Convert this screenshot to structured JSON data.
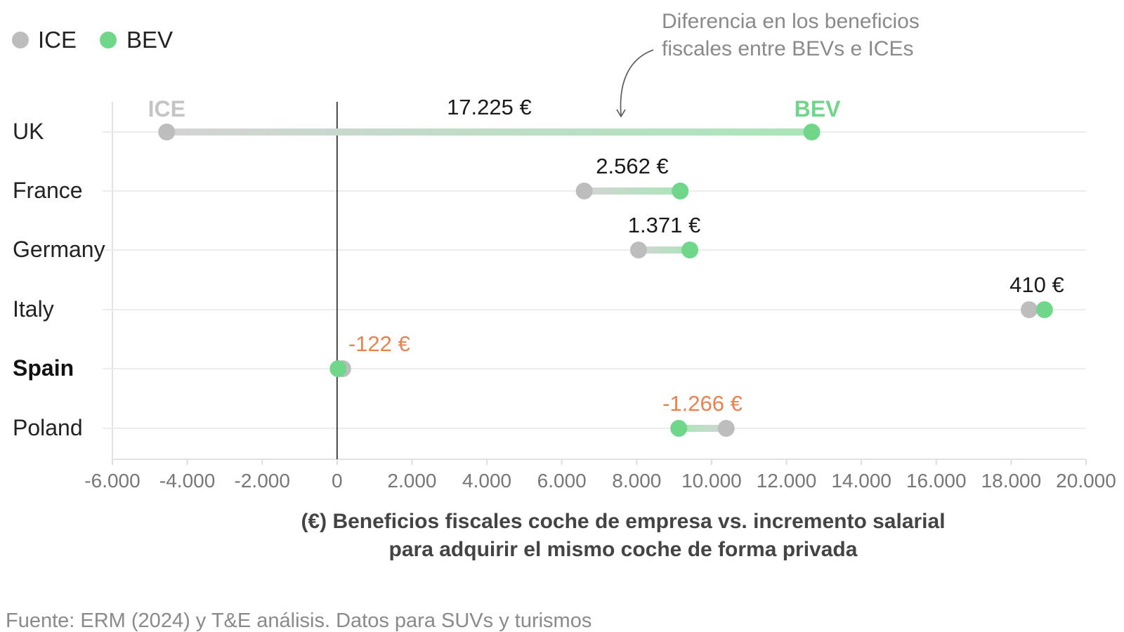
{
  "legend": [
    {
      "label": "ICE",
      "color": "#bdbdbd"
    },
    {
      "label": "BEV",
      "color": "#6fd68a"
    }
  ],
  "annotation": {
    "line1": "Diferencia en los beneficios",
    "line2": "fiscales entre BEVs e ICEs"
  },
  "end_labels": {
    "ice": "ICE",
    "bev": "BEV"
  },
  "source": "Fuente: ERM (2024) y T&E análisis. Datos para SUVs y turismos",
  "chart_data": {
    "type": "dumbbell",
    "xlabel_line1": "(€) Beneficios fiscales coche de empresa vs. incremento salarial",
    "xlabel_line2": "para adquirir el mismo coche de forma privada",
    "xlim": [
      -6000,
      20000
    ],
    "xticks": [
      -6000,
      -4000,
      -2000,
      0,
      2000,
      4000,
      6000,
      8000,
      10000,
      12000,
      14000,
      16000,
      18000,
      20000
    ],
    "xtick_labels": [
      "-6.000",
      "-4.000",
      "-2.000",
      "0",
      "2.000",
      "4.000",
      "6.000",
      "8.000",
      "10.000",
      "12.000",
      "14.000",
      "16.000",
      "18.000",
      "20.000"
    ],
    "colors": {
      "ice": "#bdbdbd",
      "bev": "#6fd68a",
      "negative": "#e8834f",
      "zero_line": "#111111",
      "grid": "#ececec"
    },
    "categories": [
      "UK",
      "France",
      "Germany",
      "Italy",
      "Spain",
      "Poland"
    ],
    "rows": [
      {
        "country": "UK",
        "ice": -4550,
        "bev": 12675,
        "diff_label": "17.225 €",
        "negative": false,
        "bold": false
      },
      {
        "country": "France",
        "ice": 6600,
        "bev": 9162,
        "diff_label": "2.562 €",
        "negative": false,
        "bold": false
      },
      {
        "country": "Germany",
        "ice": 8050,
        "bev": 9421,
        "diff_label": "1.371 €",
        "negative": false,
        "bold": false
      },
      {
        "country": "Italy",
        "ice": 18480,
        "bev": 18890,
        "diff_label": "410 €",
        "negative": false,
        "bold": false
      },
      {
        "country": "Spain",
        "ice": 150,
        "bev": 28,
        "diff_label": "-122 €",
        "negative": true,
        "bold": true
      },
      {
        "country": "Poland",
        "ice": 10390,
        "bev": 9124,
        "diff_label": "-1.266 €",
        "negative": true,
        "bold": false
      }
    ]
  }
}
